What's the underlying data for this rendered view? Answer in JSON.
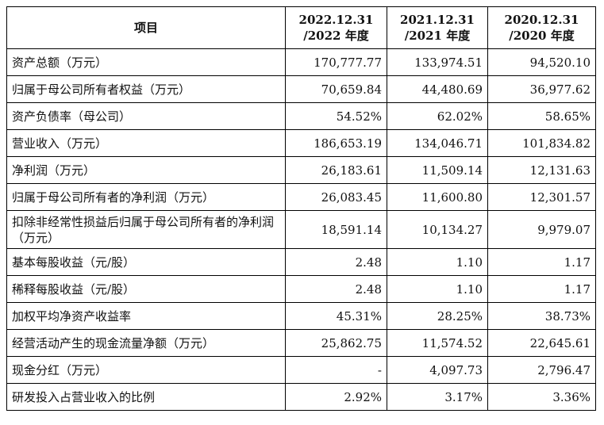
{
  "table": {
    "headers": [
      {
        "line1": "项目",
        "line2": ""
      },
      {
        "line1": "2022.12.31",
        "line2": "/2022 年度"
      },
      {
        "line1": "2021.12.31",
        "line2": "/2021 年度"
      },
      {
        "line1": "2020.12.31",
        "line2": "/2020 年度"
      }
    ],
    "rows": [
      {
        "label": "资产总额（万元）",
        "values": [
          "170,777.77",
          "133,974.51",
          "94,520.10"
        ]
      },
      {
        "label": "归属于母公司所有者权益（万元）",
        "values": [
          "70,659.84",
          "44,480.69",
          "36,977.62"
        ]
      },
      {
        "label": "资产负债率（母公司）",
        "values": [
          "54.52%",
          "62.02%",
          "58.65%"
        ]
      },
      {
        "label": "营业收入（万元）",
        "values": [
          "186,653.19",
          "134,046.71",
          "101,834.82"
        ]
      },
      {
        "label": "净利润（万元）",
        "values": [
          "26,183.61",
          "11,509.14",
          "12,131.63"
        ]
      },
      {
        "label": "归属于母公司所有者的净利润（万元）",
        "values": [
          "26,083.45",
          "11,600.80",
          "12,301.57"
        ]
      },
      {
        "label": "扣除非经常性损益后归属于母公司所有者的净利润（万元）",
        "values": [
          "18,591.14",
          "10,134.27",
          "9,979.07"
        ]
      },
      {
        "label": "基本每股收益（元/股）",
        "values": [
          "2.48",
          "1.10",
          "1.17"
        ]
      },
      {
        "label": "稀释每股收益（元/股）",
        "values": [
          "2.48",
          "1.10",
          "1.17"
        ]
      },
      {
        "label": "加权平均净资产收益率",
        "values": [
          "45.31%",
          "28.25%",
          "38.73%"
        ]
      },
      {
        "label": "经营活动产生的现金流量净额（万元）",
        "values": [
          "25,862.75",
          "11,574.52",
          "22,645.61"
        ]
      },
      {
        "label": "现金分红（万元）",
        "values": [
          "-",
          "4,097.73",
          "2,796.47"
        ]
      },
      {
        "label": "研发投入占营业收入的比例",
        "values": [
          "2.92%",
          "3.17%",
          "3.36%"
        ]
      }
    ]
  }
}
